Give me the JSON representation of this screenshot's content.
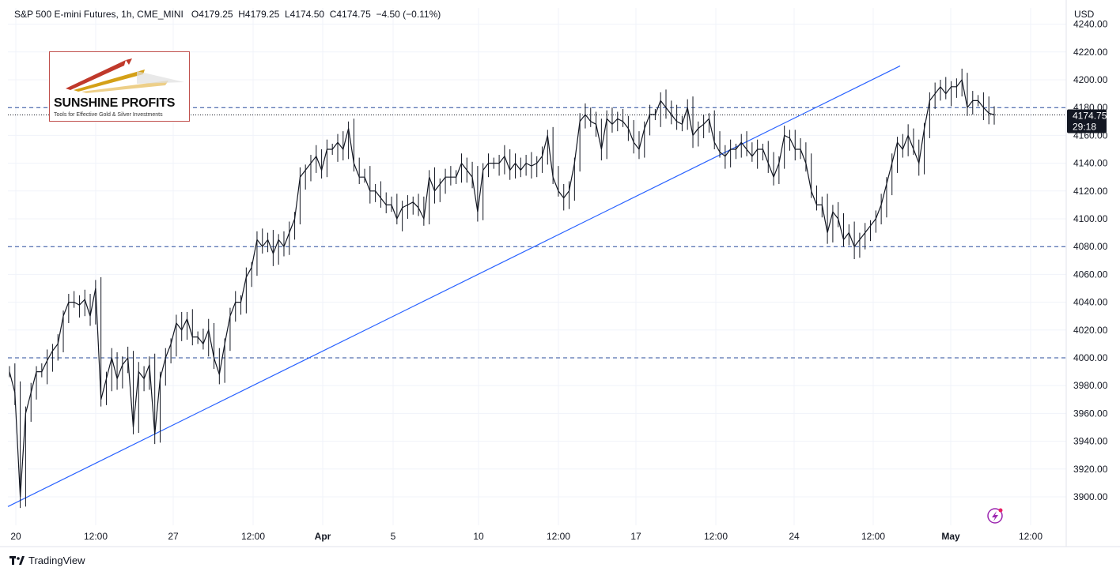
{
  "header": {
    "symbol": "S&P 500 E-mini Futures, 1h, CME_MINI",
    "open": "O4179.25",
    "high": "H4179.25",
    "low": "L4174.50",
    "close": "C4174.75",
    "change": "−4.50 (−0.11%)"
  },
  "currency": "USD",
  "price_badge": {
    "price": "4174.75",
    "countdown": "29:18"
  },
  "logo": {
    "title": "SUNSHINE PROFITS",
    "tagline": "Tools for Effective Gold & Silver Investments"
  },
  "footer": {
    "brand": "TradingView"
  },
  "colors": {
    "background": "#ffffff",
    "candle": "#131722",
    "trendline": "#2962ff",
    "level_line": "#2a4d9b",
    "badge": "#131722",
    "spark_icon": "#9c27b0"
  },
  "chart_data": {
    "type": "line",
    "title": "S&P 500 E-mini Futures, 1h, CME_MINI",
    "ylabel": "USD",
    "ylim": [
      3885,
      4245
    ],
    "y_ticks": [
      "4240.00",
      "4220.00",
      "4200.00",
      "4180.00",
      "4160.00",
      "4140.00",
      "4120.00",
      "4100.00",
      "4080.00",
      "4060.00",
      "4040.00",
      "4020.00",
      "4000.00",
      "3980.00",
      "3960.00",
      "3940.00",
      "3920.00",
      "3900.00"
    ],
    "x_ticks": [
      "20",
      "12:00",
      "27",
      "12:00",
      "Apr",
      "5",
      "10",
      "12:00",
      "17",
      "12:00",
      "24",
      "12:00",
      "May",
      "12:00"
    ],
    "horizontal_levels": [
      4180,
      4080,
      4000
    ],
    "last_price_line": 4174.75,
    "trendline": {
      "start": [
        0,
        3893
      ],
      "end": [
        1128,
        4210
      ]
    },
    "series": [
      {
        "values": [
          3990,
          3975,
          3900,
          3960,
          3975,
          3990,
          3990,
          3998,
          4005,
          4010,
          4030,
          4040,
          4040,
          4038,
          4042,
          4030,
          4050,
          3970,
          3985,
          4000,
          3985,
          3995,
          4000,
          3950,
          3990,
          3985,
          3995,
          3945,
          3985,
          4000,
          4010,
          4025,
          4020,
          4028,
          4015,
          4015,
          4010,
          4020,
          4000,
          3988,
          4010,
          4030,
          4040,
          4040,
          4058,
          4065,
          4085,
          4080,
          4085,
          4075,
          4085,
          4080,
          4090,
          4100,
          4130,
          4135,
          4140,
          4145,
          4135,
          4150,
          4150,
          4155,
          4150,
          4165,
          4140,
          4130,
          4130,
          4120,
          4120,
          4115,
          4110,
          4110,
          4100,
          4108,
          4110,
          4112,
          4108,
          4100,
          4130,
          4120,
          4125,
          4130,
          4130,
          4130,
          4140,
          4135,
          4130,
          4105,
          4135,
          4140,
          4140,
          4140,
          4145,
          4135,
          4140,
          4135,
          4140,
          4138,
          4140,
          4145,
          4160,
          4130,
          4120,
          4115,
          4120,
          4140,
          4170,
          4175,
          4170,
          4168,
          4150,
          4172,
          4168,
          4172,
          4170,
          4165,
          4155,
          4150,
          4165,
          4175,
          4175,
          4185,
          4180,
          4175,
          4170,
          4168,
          4180,
          4160,
          4165,
          4168,
          4172,
          4155,
          4148,
          4145,
          4150,
          4150,
          4155,
          4150,
          4145,
          4150,
          4150,
          4140,
          4130,
          4140,
          4160,
          4158,
          4150,
          4150,
          4140,
          4120,
          4110,
          4110,
          4090,
          4105,
          4100,
          4085,
          4090,
          4080,
          4085,
          4090,
          4095,
          4100,
          4110,
          4125,
          4140,
          4155,
          4150,
          4160,
          4150,
          4140,
          4165,
          4185,
          4190,
          4195,
          4190,
          4195,
          4195,
          4200,
          4180,
          4185,
          4185,
          4180,
          4176,
          4174.75
        ]
      }
    ]
  }
}
